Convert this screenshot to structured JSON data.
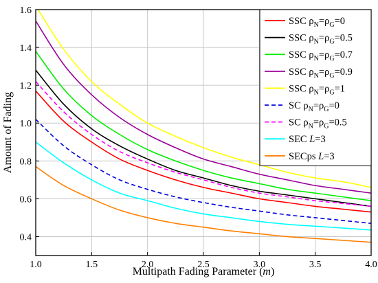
{
  "chart_data": {
    "type": "line",
    "xlabel": "Multipath Fading Parameter (m)",
    "ylabel": "Amount of Fading",
    "xlim": [
      1.0,
      4.0
    ],
    "ylim": [
      0.3,
      1.6
    ],
    "x_ticks": [
      "1.0",
      "1.5",
      "2.0",
      "2.5",
      "3.0",
      "3.5",
      "4.0"
    ],
    "y_ticks": [
      "0.4",
      "0.6",
      "0.8",
      "1.0",
      "1.2",
      "1.4",
      "1.6"
    ],
    "grid": true,
    "legend_position": "top-right",
    "x": [
      1.0,
      1.25,
      1.5,
      1.75,
      2.0,
      2.25,
      2.5,
      2.75,
      3.0,
      3.25,
      3.5,
      3.75,
      4.0
    ],
    "series": [
      {
        "name": "SSC ρN=ρG=0",
        "legend": {
          "main": "SSC ρ",
          "parts": [
            [
              "N",
              "=ρ"
            ],
            [
              "G",
              "=0"
            ]
          ]
        },
        "color": "#ff0000",
        "dash": false,
        "values": [
          1.17,
          1.01,
          0.9,
          0.81,
          0.75,
          0.7,
          0.66,
          0.63,
          0.6,
          0.58,
          0.56,
          0.545,
          0.53
        ]
      },
      {
        "name": "SSC ρN=ρG=0.5",
        "legend": {
          "main": "SSC ρ",
          "parts": [
            [
              "N",
              "=ρ"
            ],
            [
              "G",
              "=0.5"
            ]
          ]
        },
        "color": "#000000",
        "dash": false,
        "values": [
          1.28,
          1.1,
          0.97,
          0.88,
          0.81,
          0.75,
          0.71,
          0.67,
          0.64,
          0.62,
          0.6,
          0.58,
          0.56
        ]
      },
      {
        "name": "SSC ρN=ρG=0.7",
        "legend": {
          "main": "SSC ρ",
          "parts": [
            [
              "N",
              "=ρ"
            ],
            [
              "G",
              "=0.7"
            ]
          ]
        },
        "color": "#00ee00",
        "dash": false,
        "values": [
          1.38,
          1.18,
          1.04,
          0.94,
          0.86,
          0.8,
          0.75,
          0.71,
          0.68,
          0.65,
          0.63,
          0.61,
          0.59
        ]
      },
      {
        "name": "SSC ρN=ρG=0.9",
        "legend": {
          "main": "SSC ρ",
          "parts": [
            [
              "N",
              "=ρ"
            ],
            [
              "G",
              "=0.9"
            ]
          ]
        },
        "color": "#990099",
        "dash": false,
        "values": [
          1.54,
          1.31,
          1.15,
          1.03,
          0.94,
          0.87,
          0.81,
          0.77,
          0.73,
          0.7,
          0.67,
          0.65,
          0.63
        ]
      },
      {
        "name": "SSC ρN=ρG=1",
        "legend": {
          "main": "SSC ρ",
          "parts": [
            [
              "N",
              "=ρ"
            ],
            [
              "G",
              "=1"
            ]
          ]
        },
        "color": "#ffff00",
        "dash": false,
        "values": [
          1.62,
          1.39,
          1.22,
          1.1,
          1.0,
          0.93,
          0.87,
          0.82,
          0.78,
          0.74,
          0.71,
          0.69,
          0.66
        ]
      },
      {
        "name": "SC ρN=ρG=0",
        "legend": {
          "main": "SC   ρ",
          "parts": [
            [
              "N",
              "=ρ"
            ],
            [
              "G",
              "=0"
            ]
          ]
        },
        "color": "#0000dd",
        "dash": true,
        "values": [
          1.02,
          0.88,
          0.78,
          0.7,
          0.65,
          0.61,
          0.58,
          0.555,
          0.535,
          0.515,
          0.5,
          0.485,
          0.47
        ]
      },
      {
        "name": "SC ρN=ρG=0.5",
        "legend": {
          "main": "SC   ρ",
          "parts": [
            [
              "N",
              "=ρ"
            ],
            [
              "G",
              "=0.5"
            ]
          ]
        },
        "color": "#ff00ff",
        "dash": true,
        "values": [
          1.22,
          1.06,
          0.94,
          0.85,
          0.79,
          0.74,
          0.7,
          0.66,
          0.63,
          0.61,
          0.59,
          0.575,
          0.56
        ]
      },
      {
        "name": "SEC L=3",
        "legend": {
          "main": "SEC ",
          "italic": "L",
          "tail": "=3"
        },
        "color": "#00ffff",
        "dash": false,
        "values": [
          0.9,
          0.79,
          0.7,
          0.63,
          0.59,
          0.55,
          0.52,
          0.5,
          0.48,
          0.465,
          0.455,
          0.445,
          0.435
        ]
      },
      {
        "name": "SECps L=3",
        "legend": {
          "main": "SECps ",
          "italic": "L",
          "tail": "=3"
        },
        "color": "#ff7f00",
        "dash": false,
        "values": [
          0.77,
          0.67,
          0.6,
          0.54,
          0.5,
          0.47,
          0.45,
          0.43,
          0.415,
          0.4,
          0.39,
          0.38,
          0.37
        ]
      }
    ]
  }
}
